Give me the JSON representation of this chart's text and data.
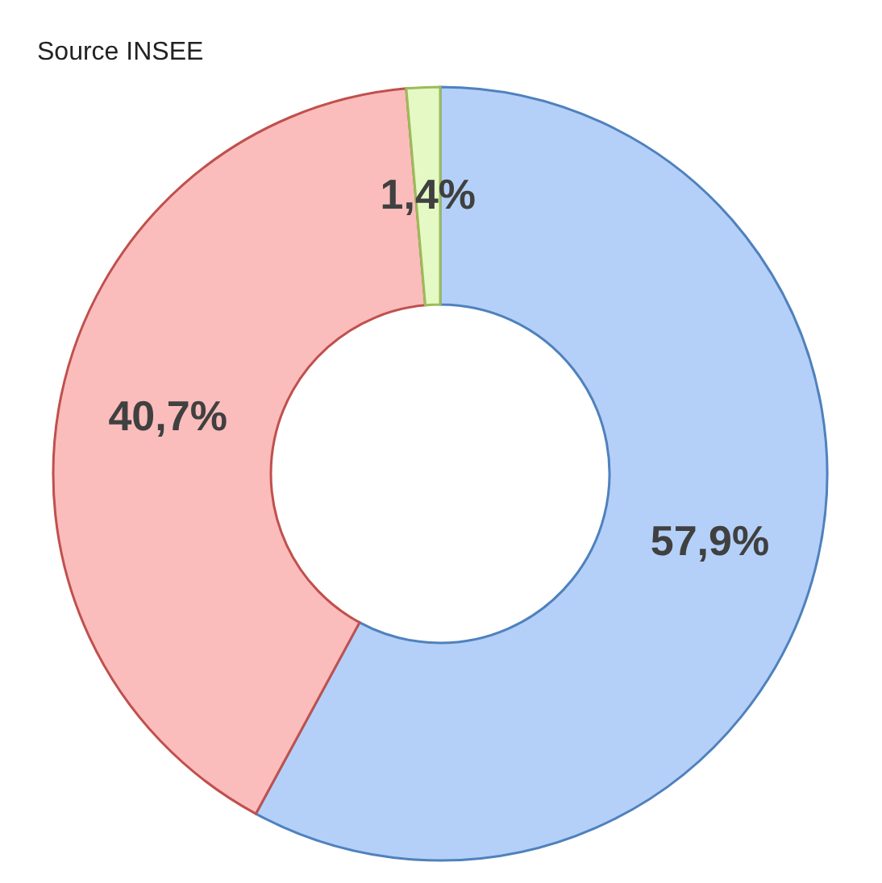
{
  "chart_data": {
    "type": "donut",
    "annotations": [
      "Source INSEE"
    ],
    "categories": [
      null,
      null,
      null
    ],
    "values": [
      57.9,
      40.7,
      1.4
    ],
    "value_labels": [
      "57,9%",
      "40,7%",
      "1,4%"
    ],
    "colors": [
      "#b4d0f8",
      "#fbbcbc",
      "#e4f9c4"
    ]
  }
}
